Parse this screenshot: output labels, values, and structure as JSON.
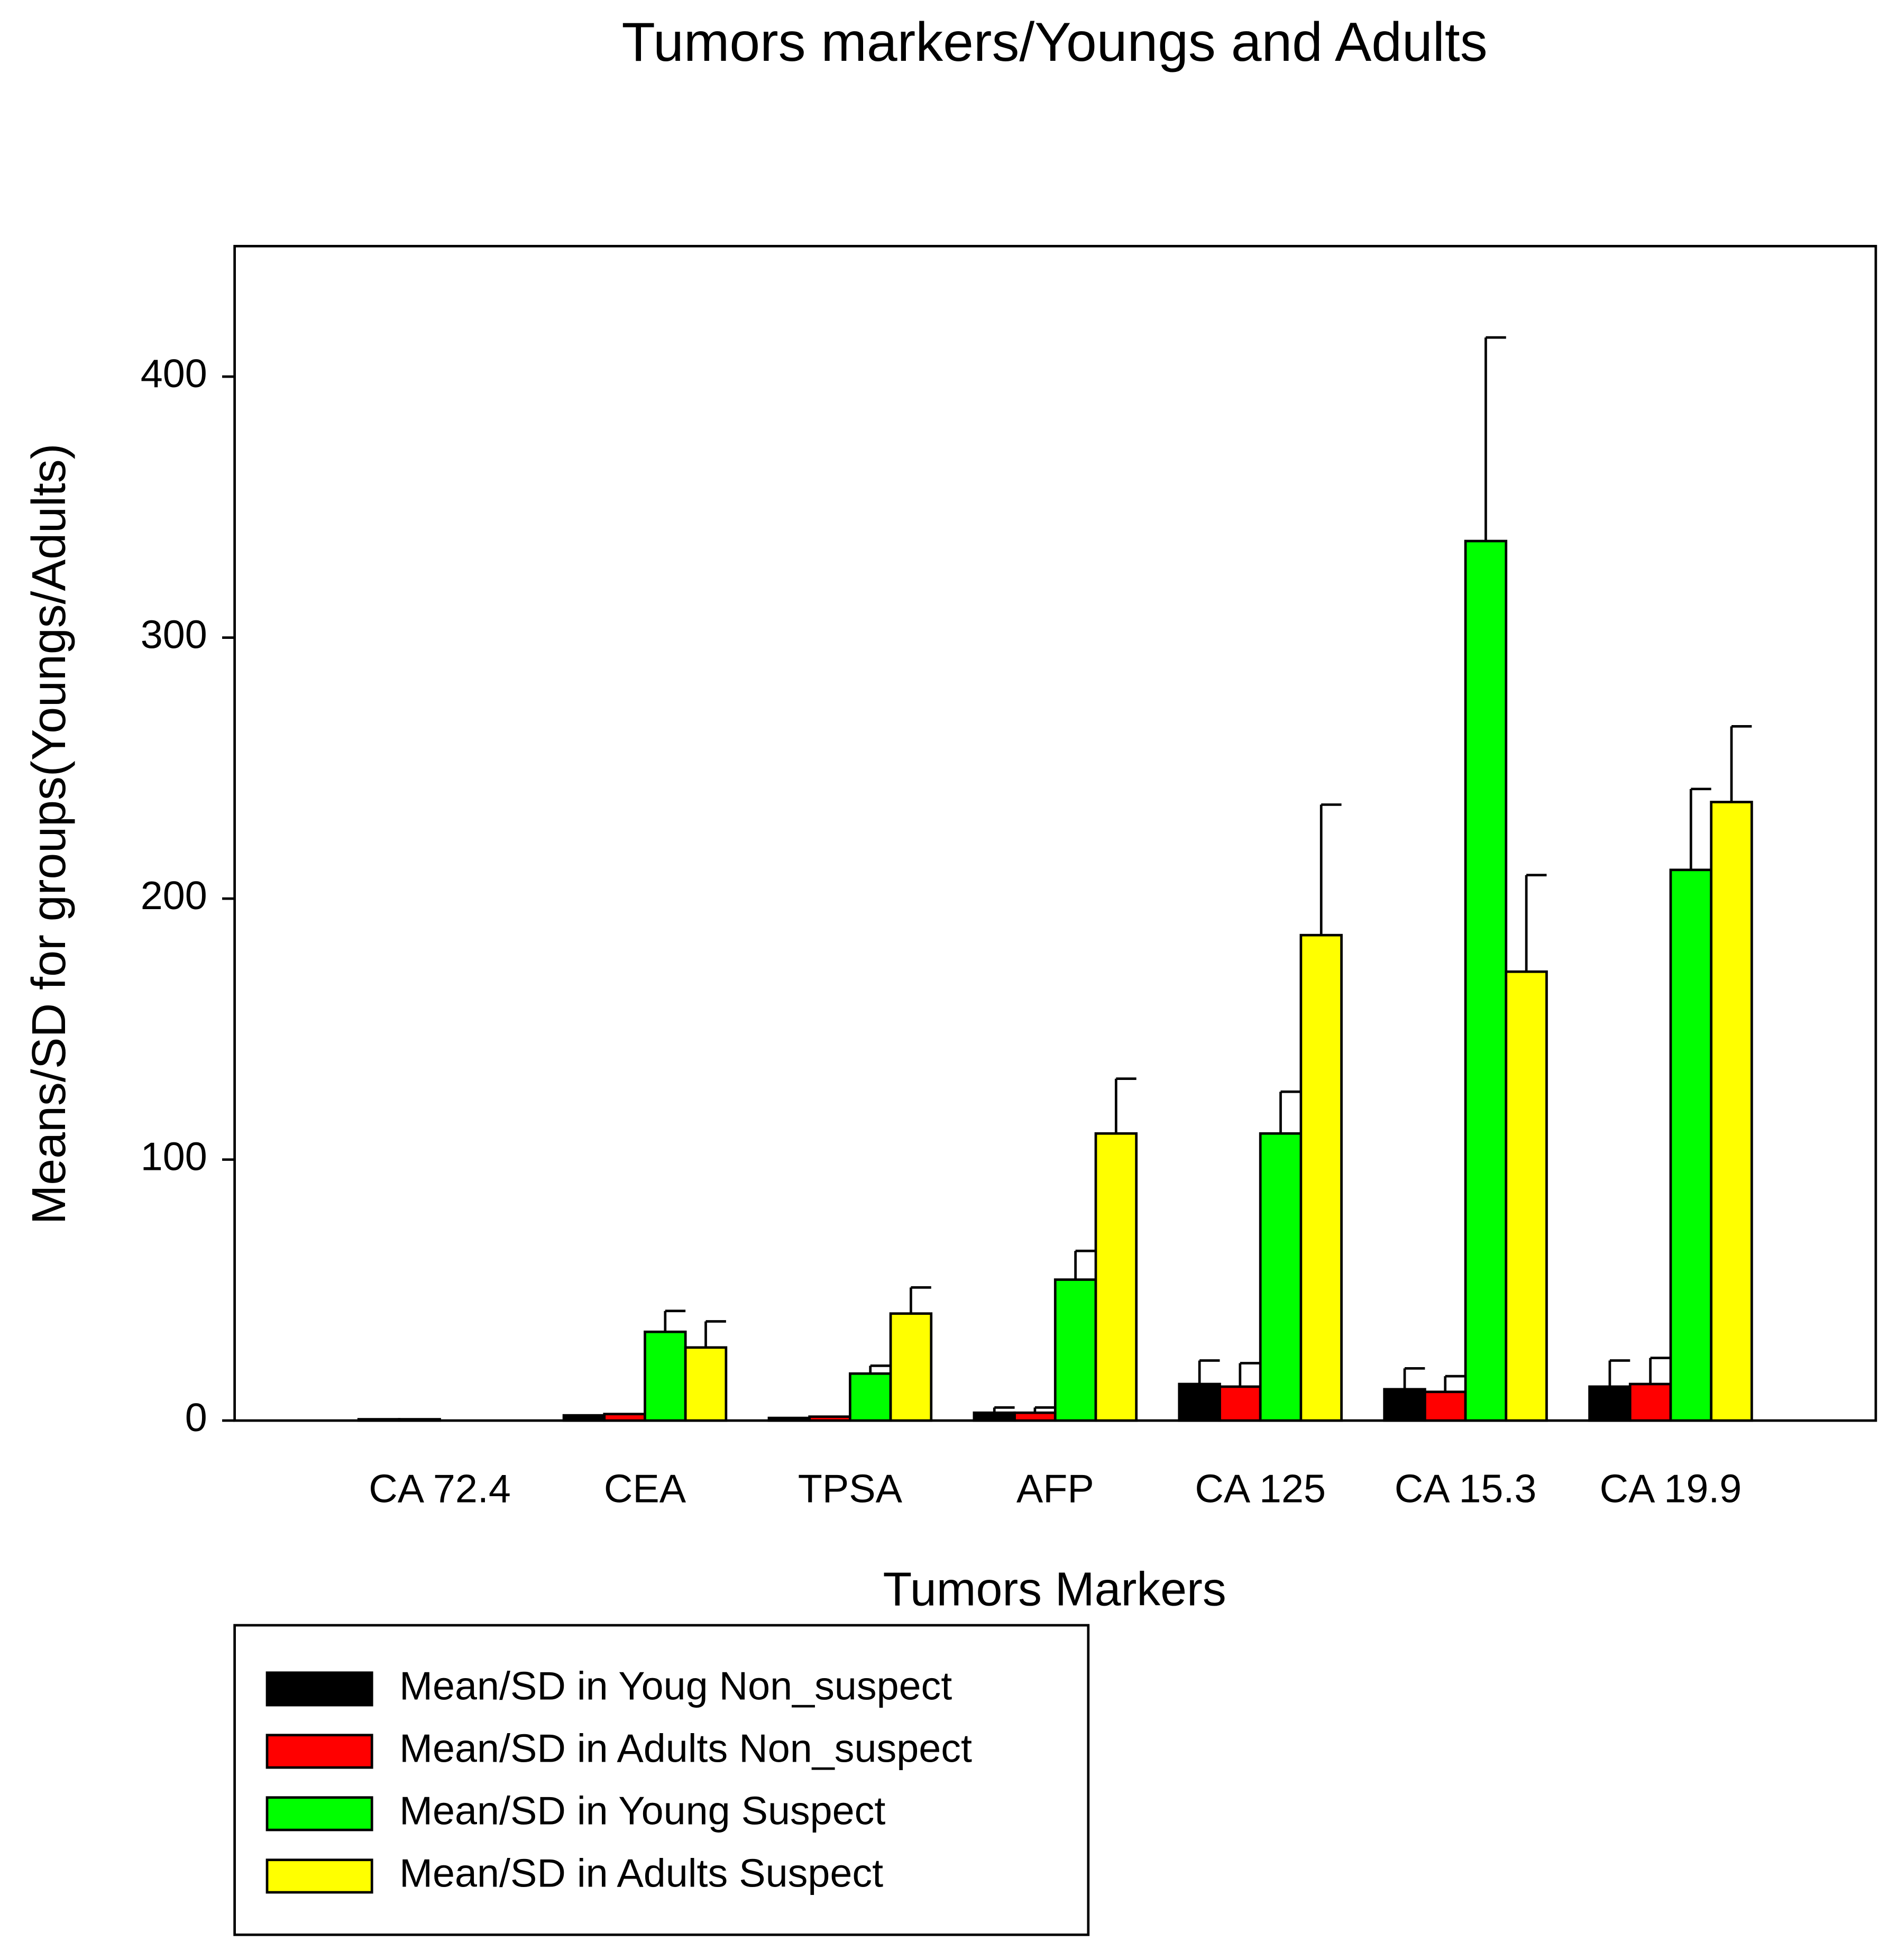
{
  "chart_data": {
    "type": "bar",
    "title": "Tumors markers/Youngs and Adults",
    "x_label": "Tumors Markers",
    "y_label": "Means/SD for groups(Youngs/Adults)",
    "categories": [
      "CA 72.4",
      "CEA",
      "TPSA",
      "AFP",
      "CA 125",
      "CA 15.3",
      "CA 19.9"
    ],
    "series": [
      {
        "name": "Mean/SD in Youg Non_suspect",
        "color": "#000000",
        "values": [
          0.5,
          2,
          1,
          3,
          14,
          12,
          13
        ],
        "errors": [
          0,
          0,
          0,
          2,
          9,
          8,
          10
        ]
      },
      {
        "name": "Mean/SD in Adults Non_suspect",
        "color": "#ff0000",
        "values": [
          0.5,
          2.5,
          1.5,
          3,
          13,
          11,
          14
        ],
        "errors": [
          0,
          0,
          0,
          2,
          9,
          6,
          10
        ]
      },
      {
        "name": "Mean/SD in Young Suspect",
        "color": "#00ff00",
        "values": [
          0,
          34,
          18,
          54,
          110,
          337,
          211
        ],
        "errors": [
          0,
          8,
          3,
          11,
          16,
          78,
          31
        ]
      },
      {
        "name": "Mean/SD in Adults Suspect",
        "color": "#ffff00",
        "values": [
          0,
          28,
          41,
          110,
          186,
          172,
          237
        ],
        "errors": [
          0,
          10,
          10,
          21,
          50,
          37,
          29
        ]
      }
    ],
    "ylim": [
      0,
      450
    ],
    "yticks": [
      0,
      100,
      200,
      300,
      400
    ],
    "grid": false,
    "legend": "bottom-left"
  }
}
